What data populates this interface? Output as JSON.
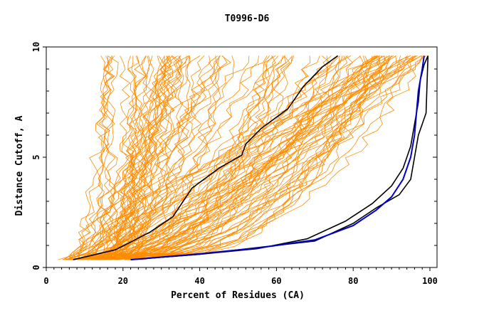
{
  "chart_data": {
    "type": "line",
    "title": "T0996-D6",
    "xlabel": "Percent of Residues (CA)",
    "ylabel": "Distance Cutoff, A",
    "xlim": [
      0,
      100
    ],
    "ylim": [
      0,
      10
    ],
    "x_ticks": [
      "0",
      "20",
      "40",
      "60",
      "80",
      "100"
    ],
    "y_ticks": [
      "0",
      "5",
      "10"
    ],
    "grid": false,
    "legend": "none",
    "colors": {
      "background_models": "#ff8c00",
      "highlight_black": "#000000",
      "highlight_blue": "#0000cc"
    },
    "background_model_count": 120,
    "highlight_series": [
      {
        "color": "#000000",
        "x": [
          7,
          18,
          27,
          33,
          38,
          45,
          51,
          52,
          56,
          63,
          67,
          72,
          76
        ],
        "y": [
          0.35,
          0.8,
          1.6,
          2.3,
          3.6,
          4.5,
          5.1,
          5.6,
          6.3,
          7.2,
          8.2,
          9.1,
          9.6
        ]
      },
      {
        "color": "#000000",
        "x": [
          22,
          40,
          55,
          68,
          78,
          85,
          90,
          93,
          95,
          96,
          97,
          97.5,
          98.5,
          99.5
        ],
        "y": [
          0.35,
          0.6,
          0.85,
          1.3,
          2.1,
          2.9,
          3.7,
          4.5,
          5.5,
          6.5,
          7.5,
          8.5,
          9.2,
          9.6
        ]
      },
      {
        "color": "#000000",
        "x": [
          22,
          40,
          55,
          70,
          80,
          86,
          92,
          95,
          96,
          97,
          98,
          99,
          99.5
        ],
        "y": [
          0.35,
          0.6,
          0.9,
          1.2,
          2.0,
          2.7,
          3.3,
          4.0,
          5.0,
          6.0,
          6.5,
          7.0,
          9.6
        ]
      },
      {
        "color": "#0000cc",
        "x": [
          22,
          40,
          56,
          70,
          80,
          86,
          90,
          93,
          95,
          96,
          96.5,
          97,
          97.5,
          98,
          98.5
        ],
        "y": [
          0.35,
          0.62,
          0.9,
          1.25,
          1.9,
          2.6,
          3.2,
          4.0,
          5.0,
          6.0,
          7.0,
          8.0,
          8.5,
          9.0,
          9.6
        ]
      }
    ]
  }
}
